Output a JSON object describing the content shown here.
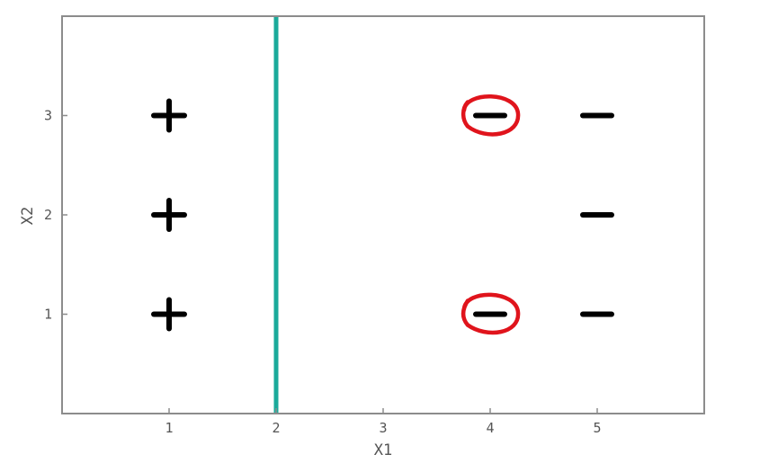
{
  "chart_data": {
    "type": "scatter",
    "title": "",
    "xlabel": "X1",
    "ylabel": "X2",
    "xlim": [
      0,
      6
    ],
    "ylim": [
      0,
      4
    ],
    "x_ticks": [
      "1",
      "2",
      "3",
      "4",
      "5"
    ],
    "y_ticks": [
      "1",
      "2",
      "3"
    ],
    "grid": false,
    "series": [
      {
        "marker": "+",
        "color": "#000000",
        "points": [
          {
            "x": 1,
            "y": 1
          },
          {
            "x": 1,
            "y": 2
          },
          {
            "x": 1,
            "y": 3
          }
        ]
      },
      {
        "marker": "-",
        "color": "#000000",
        "points": [
          {
            "x": 4,
            "y": 1
          },
          {
            "x": 4,
            "y": 3
          },
          {
            "x": 5,
            "y": 1
          },
          {
            "x": 5,
            "y": 2
          },
          {
            "x": 5,
            "y": 3
          }
        ]
      }
    ],
    "decision_boundary": {
      "orientation": "vertical",
      "x": 2,
      "color": "#1aaa9a"
    },
    "highlighted_points": {
      "color": "#e0141c",
      "points": [
        {
          "x": 4,
          "y": 1
        },
        {
          "x": 4,
          "y": 3
        }
      ]
    }
  },
  "colors": {
    "axis": "#8c8c8c",
    "tick_label": "#555555"
  }
}
